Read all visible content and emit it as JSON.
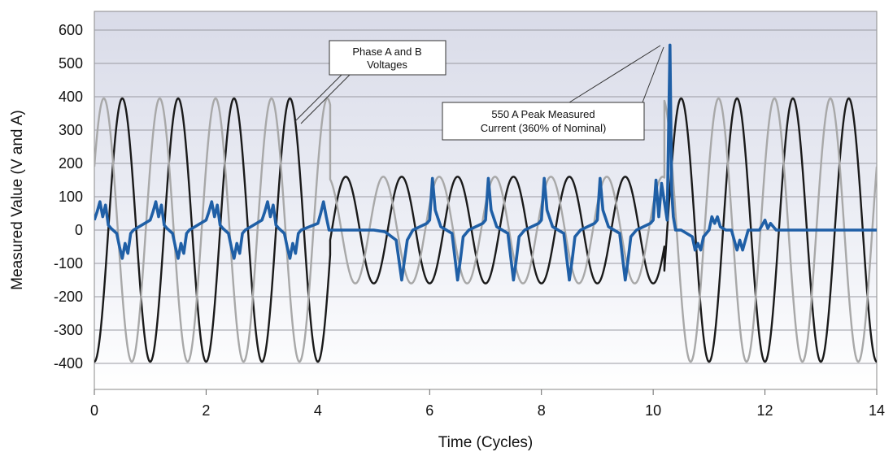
{
  "chart_data": {
    "type": "line",
    "xlabel": "Time (Cycles)",
    "ylabel": "Measured Value (V and A)",
    "xlim": [
      0,
      14
    ],
    "ylim": [
      -400,
      600
    ],
    "xticks": [
      "0",
      "2",
      "4",
      "6",
      "8",
      "10",
      "12",
      "14"
    ],
    "yticks": [
      "600",
      "500",
      "400",
      "300",
      "200",
      "100",
      "0",
      "-100",
      "-200",
      "-300",
      "-400"
    ],
    "grid": true,
    "series": [
      {
        "key": "phase-a-voltage",
        "color": "#1a1a1a",
        "segments": [
          {
            "x_start": 0,
            "x_end": 4.22,
            "amplitude": 395,
            "phase_offset_cycles": 0
          },
          {
            "x_start": 4.22,
            "x_end": 10.2,
            "amplitude": 160,
            "phase_offset_cycles": 0
          },
          {
            "x_start": 10.2,
            "x_end": 14,
            "amplitude": 395,
            "phase_offset_cycles": 0
          }
        ]
      },
      {
        "key": "phase-b-voltage",
        "color": "#a8a8a8",
        "segments": [
          {
            "x_start": 0,
            "x_end": 4.22,
            "amplitude": 395,
            "phase_offset_cycles": -0.33
          },
          {
            "x_start": 4.22,
            "x_end": 10.2,
            "amplitude": 160,
            "phase_offset_cycles": -0.33
          },
          {
            "x_start": 10.2,
            "x_end": 14,
            "amplitude": 395,
            "phase_offset_cycles": -0.33
          }
        ]
      },
      {
        "key": "measured-current",
        "color": "#1f5fa6",
        "points": [
          [
            0,
            30
          ],
          [
            0.05,
            55
          ],
          [
            0.1,
            85
          ],
          [
            0.15,
            40
          ],
          [
            0.2,
            75
          ],
          [
            0.25,
            15
          ],
          [
            0.3,
            5
          ],
          [
            0.4,
            -10
          ],
          [
            0.45,
            -50
          ],
          [
            0.5,
            -85
          ],
          [
            0.55,
            -40
          ],
          [
            0.6,
            -70
          ],
          [
            0.65,
            -10
          ],
          [
            0.7,
            0
          ],
          [
            1,
            30
          ],
          [
            1.05,
            55
          ],
          [
            1.1,
            85
          ],
          [
            1.15,
            40
          ],
          [
            1.2,
            75
          ],
          [
            1.25,
            15
          ],
          [
            1.3,
            5
          ],
          [
            1.4,
            -10
          ],
          [
            1.45,
            -50
          ],
          [
            1.5,
            -85
          ],
          [
            1.55,
            -40
          ],
          [
            1.6,
            -70
          ],
          [
            1.65,
            -10
          ],
          [
            1.7,
            0
          ],
          [
            2,
            30
          ],
          [
            2.05,
            55
          ],
          [
            2.1,
            85
          ],
          [
            2.15,
            40
          ],
          [
            2.2,
            75
          ],
          [
            2.25,
            15
          ],
          [
            2.3,
            5
          ],
          [
            2.4,
            -10
          ],
          [
            2.45,
            -50
          ],
          [
            2.5,
            -85
          ],
          [
            2.55,
            -40
          ],
          [
            2.6,
            -70
          ],
          [
            2.65,
            -10
          ],
          [
            2.7,
            0
          ],
          [
            3,
            30
          ],
          [
            3.05,
            55
          ],
          [
            3.1,
            85
          ],
          [
            3.15,
            40
          ],
          [
            3.2,
            75
          ],
          [
            3.25,
            15
          ],
          [
            3.3,
            5
          ],
          [
            3.4,
            -10
          ],
          [
            3.45,
            -50
          ],
          [
            3.5,
            -85
          ],
          [
            3.55,
            -40
          ],
          [
            3.6,
            -70
          ],
          [
            3.65,
            -10
          ],
          [
            3.7,
            0
          ],
          [
            4.0,
            20
          ],
          [
            4.05,
            50
          ],
          [
            4.1,
            85
          ],
          [
            4.15,
            40
          ],
          [
            4.2,
            0
          ],
          [
            4.3,
            0
          ],
          [
            5.0,
            0
          ],
          [
            5.2,
            -5
          ],
          [
            5.4,
            -30
          ],
          [
            5.5,
            -150
          ],
          [
            5.55,
            -90
          ],
          [
            5.6,
            -30
          ],
          [
            5.7,
            0
          ],
          [
            5.95,
            20
          ],
          [
            6.0,
            30
          ],
          [
            6.05,
            155
          ],
          [
            6.1,
            60
          ],
          [
            6.2,
            10
          ],
          [
            6.4,
            -10
          ],
          [
            6.5,
            -150
          ],
          [
            6.55,
            -90
          ],
          [
            6.6,
            -20
          ],
          [
            6.7,
            0
          ],
          [
            6.95,
            20
          ],
          [
            7.0,
            30
          ],
          [
            7.05,
            155
          ],
          [
            7.1,
            60
          ],
          [
            7.2,
            10
          ],
          [
            7.4,
            -10
          ],
          [
            7.5,
            -150
          ],
          [
            7.55,
            -90
          ],
          [
            7.6,
            -20
          ],
          [
            7.7,
            0
          ],
          [
            7.95,
            20
          ],
          [
            8.0,
            30
          ],
          [
            8.05,
            155
          ],
          [
            8.1,
            60
          ],
          [
            8.2,
            10
          ],
          [
            8.4,
            -10
          ],
          [
            8.5,
            -150
          ],
          [
            8.55,
            -90
          ],
          [
            8.6,
            -20
          ],
          [
            8.7,
            0
          ],
          [
            8.95,
            20
          ],
          [
            9.0,
            30
          ],
          [
            9.05,
            155
          ],
          [
            9.1,
            60
          ],
          [
            9.2,
            10
          ],
          [
            9.4,
            -10
          ],
          [
            9.5,
            -150
          ],
          [
            9.55,
            -90
          ],
          [
            9.6,
            -20
          ],
          [
            9.7,
            0
          ],
          [
            9.95,
            20
          ],
          [
            10.0,
            30
          ],
          [
            10.05,
            150
          ],
          [
            10.1,
            40
          ],
          [
            10.15,
            140
          ],
          [
            10.25,
            30
          ],
          [
            10.3,
            555
          ],
          [
            10.33,
            120
          ],
          [
            10.36,
            40
          ],
          [
            10.4,
            0
          ],
          [
            10.5,
            0
          ],
          [
            10.7,
            -20
          ],
          [
            10.75,
            -60
          ],
          [
            10.8,
            -40
          ],
          [
            10.85,
            -60
          ],
          [
            10.9,
            -20
          ],
          [
            11.0,
            0
          ],
          [
            11.05,
            40
          ],
          [
            11.1,
            20
          ],
          [
            11.15,
            40
          ],
          [
            11.2,
            10
          ],
          [
            11.3,
            0
          ],
          [
            11.4,
            0
          ],
          [
            11.45,
            -30
          ],
          [
            11.5,
            -60
          ],
          [
            11.55,
            -30
          ],
          [
            11.6,
            -60
          ],
          [
            11.7,
            0
          ],
          [
            11.9,
            0
          ],
          [
            12.0,
            30
          ],
          [
            12.05,
            5
          ],
          [
            12.1,
            20
          ],
          [
            12.2,
            0
          ],
          [
            12.3,
            0
          ],
          [
            14.0,
            0
          ]
        ]
      }
    ],
    "annotations": [
      {
        "key": "voltages",
        "lines": [
          "Phase A and B",
          "Voltages"
        ]
      },
      {
        "key": "peak",
        "lines": [
          "550 A Peak Measured",
          "Current (360% of Nominal)"
        ]
      }
    ]
  }
}
